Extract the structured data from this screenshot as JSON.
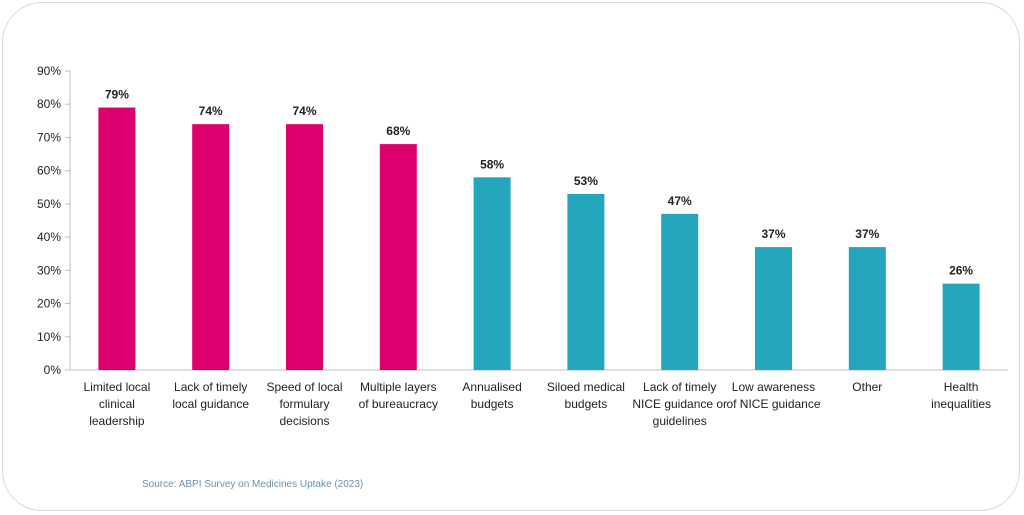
{
  "chart_data": {
    "type": "bar",
    "title": "",
    "xlabel": "",
    "ylabel": "",
    "ylim": [
      0,
      90
    ],
    "yticks": [
      "0%",
      "10%",
      "20%",
      "30%",
      "40%",
      "50%",
      "60%",
      "70%",
      "80%",
      "90%"
    ],
    "grid": false,
    "categories": [
      [
        "Limited local",
        "clinical",
        "leadership"
      ],
      [
        "Lack of timely",
        "local guidance"
      ],
      [
        "Speed of local",
        "formulary",
        "decisions"
      ],
      [
        "Multiple layers",
        "of bureaucracy"
      ],
      [
        "Annualised",
        "budgets"
      ],
      [
        "Siloed medical",
        "budgets"
      ],
      [
        "Lack of timely",
        "NICE guidance or",
        "guidelines"
      ],
      [
        "Low awareness",
        "of NICE guidance"
      ],
      [
        "Other"
      ],
      [
        "Health",
        "inequalities"
      ]
    ],
    "values": [
      79,
      74,
      74,
      68,
      58,
      53,
      47,
      37,
      37,
      26
    ],
    "data_labels": [
      "79%",
      "74%",
      "74%",
      "68%",
      "58%",
      "53%",
      "47%",
      "37%",
      "37%",
      "26%"
    ],
    "colors": [
      "#dc006e",
      "#dc006e",
      "#dc006e",
      "#dc006e",
      "#24a6bd",
      "#24a6bd",
      "#24a6bd",
      "#24a6bd",
      "#24a6bd",
      "#24a6bd"
    ]
  },
  "source": "Source: ABPI Survey on Medicines Uptake (2023)"
}
